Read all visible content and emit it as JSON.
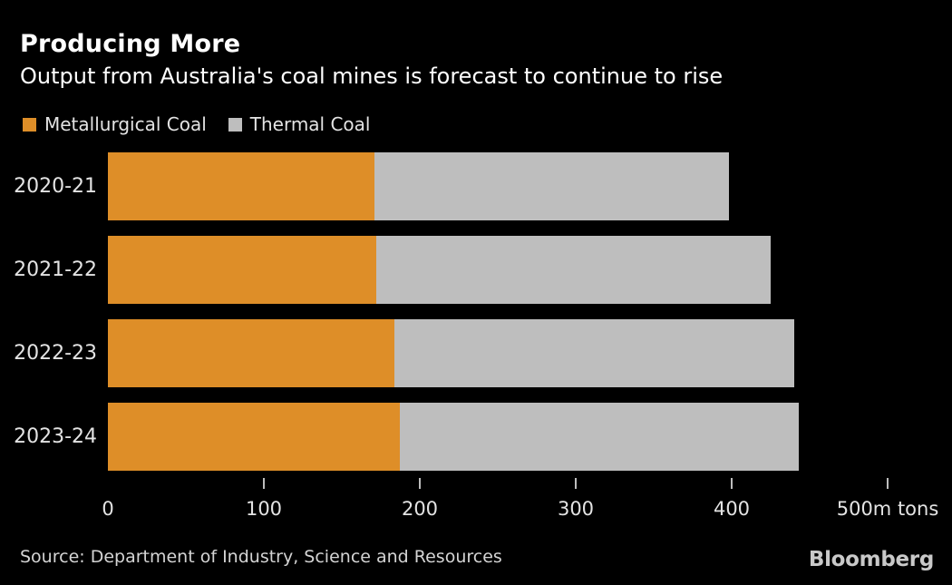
{
  "header": {
    "title": "Producing More",
    "subtitle": "Output from Australia's coal mines is forecast to continue to rise"
  },
  "chart_data": {
    "type": "bar",
    "orientation": "horizontal-stacked",
    "title": "Producing More",
    "subtitle": "Output from Australia's coal mines is forecast to continue to rise",
    "categories": [
      "2020-21",
      "2021-22",
      "2022-23",
      "2023-24"
    ],
    "series": [
      {
        "name": "Metallurgical Coal",
        "color": "#DE8E28",
        "values": [
          171,
          172,
          184,
          187
        ]
      },
      {
        "name": "Thermal Coal",
        "color": "#BEBEBE",
        "values": [
          227,
          253,
          256,
          256
        ]
      }
    ],
    "totals": [
      398,
      425,
      440,
      443
    ],
    "xlabel": "m tons",
    "ylabel": "",
    "xlim": [
      0,
      500
    ],
    "x_ticks": [
      0,
      100,
      200,
      300,
      400,
      500
    ],
    "x_tick_labels": [
      "0",
      "100",
      "200",
      "300",
      "400",
      "500m tons"
    ],
    "grid": false,
    "legend_position": "top-left",
    "background_color": "#000000",
    "text_color": "#E3E3E3"
  },
  "footer": {
    "source": "Source: Department of Industry, Science and Resources",
    "brand": "Bloomberg"
  }
}
